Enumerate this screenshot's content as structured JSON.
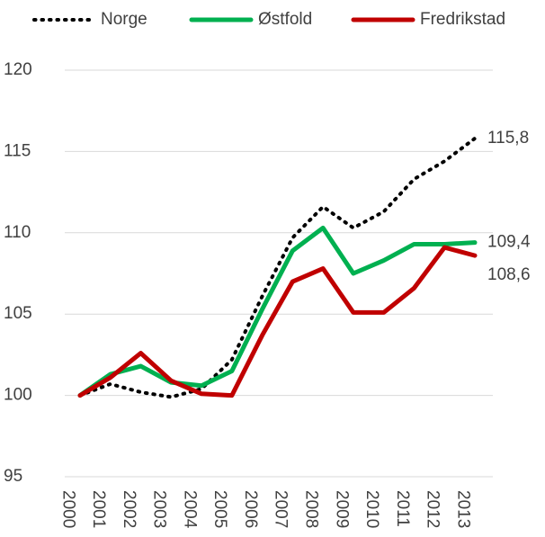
{
  "chart_data": {
    "type": "line",
    "categories": [
      "2000",
      "2001",
      "2002",
      "2003",
      "2004",
      "2005",
      "2006",
      "2007",
      "2008",
      "2009",
      "2010",
      "2011",
      "2012",
      "2013"
    ],
    "series": [
      {
        "name": "Norge",
        "color": "#000000",
        "dash": "dotted",
        "values": [
          100,
          100.7,
          100.2,
          99.9,
          100.4,
          102.2,
          106.1,
          109.7,
          111.6,
          110.3,
          111.3,
          113.3,
          114.4,
          115.8
        ],
        "value_labels": [
          null,
          null,
          null,
          null,
          null,
          null,
          null,
          null,
          null,
          null,
          null,
          null,
          null,
          "115,8"
        ]
      },
      {
        "name": "Østfold",
        "color": "#00b050",
        "values": [
          100,
          101.3,
          101.8,
          100.8,
          100.6,
          101.5,
          105.3,
          108.9,
          110.3,
          107.5,
          108.3,
          109.3,
          109.3,
          109.4
        ],
        "value_labels": [
          null,
          null,
          null,
          null,
          null,
          null,
          null,
          null,
          null,
          null,
          null,
          null,
          null,
          "109,4"
        ]
      },
      {
        "name": "Fredrikstad",
        "color": "#c00000",
        "values": [
          100,
          101.1,
          102.6,
          100.9,
          100.1,
          100.0,
          103.7,
          107.0,
          107.8,
          105.1,
          105.1,
          106.6,
          109.1,
          108.6
        ],
        "value_labels": [
          null,
          null,
          null,
          null,
          null,
          null,
          null,
          null,
          null,
          null,
          null,
          null,
          null,
          "108,6"
        ]
      }
    ],
    "ylim": [
      95,
      120
    ],
    "yticks": [
      95,
      100,
      105,
      110,
      115,
      120
    ],
    "grid": true,
    "legend": "top"
  }
}
